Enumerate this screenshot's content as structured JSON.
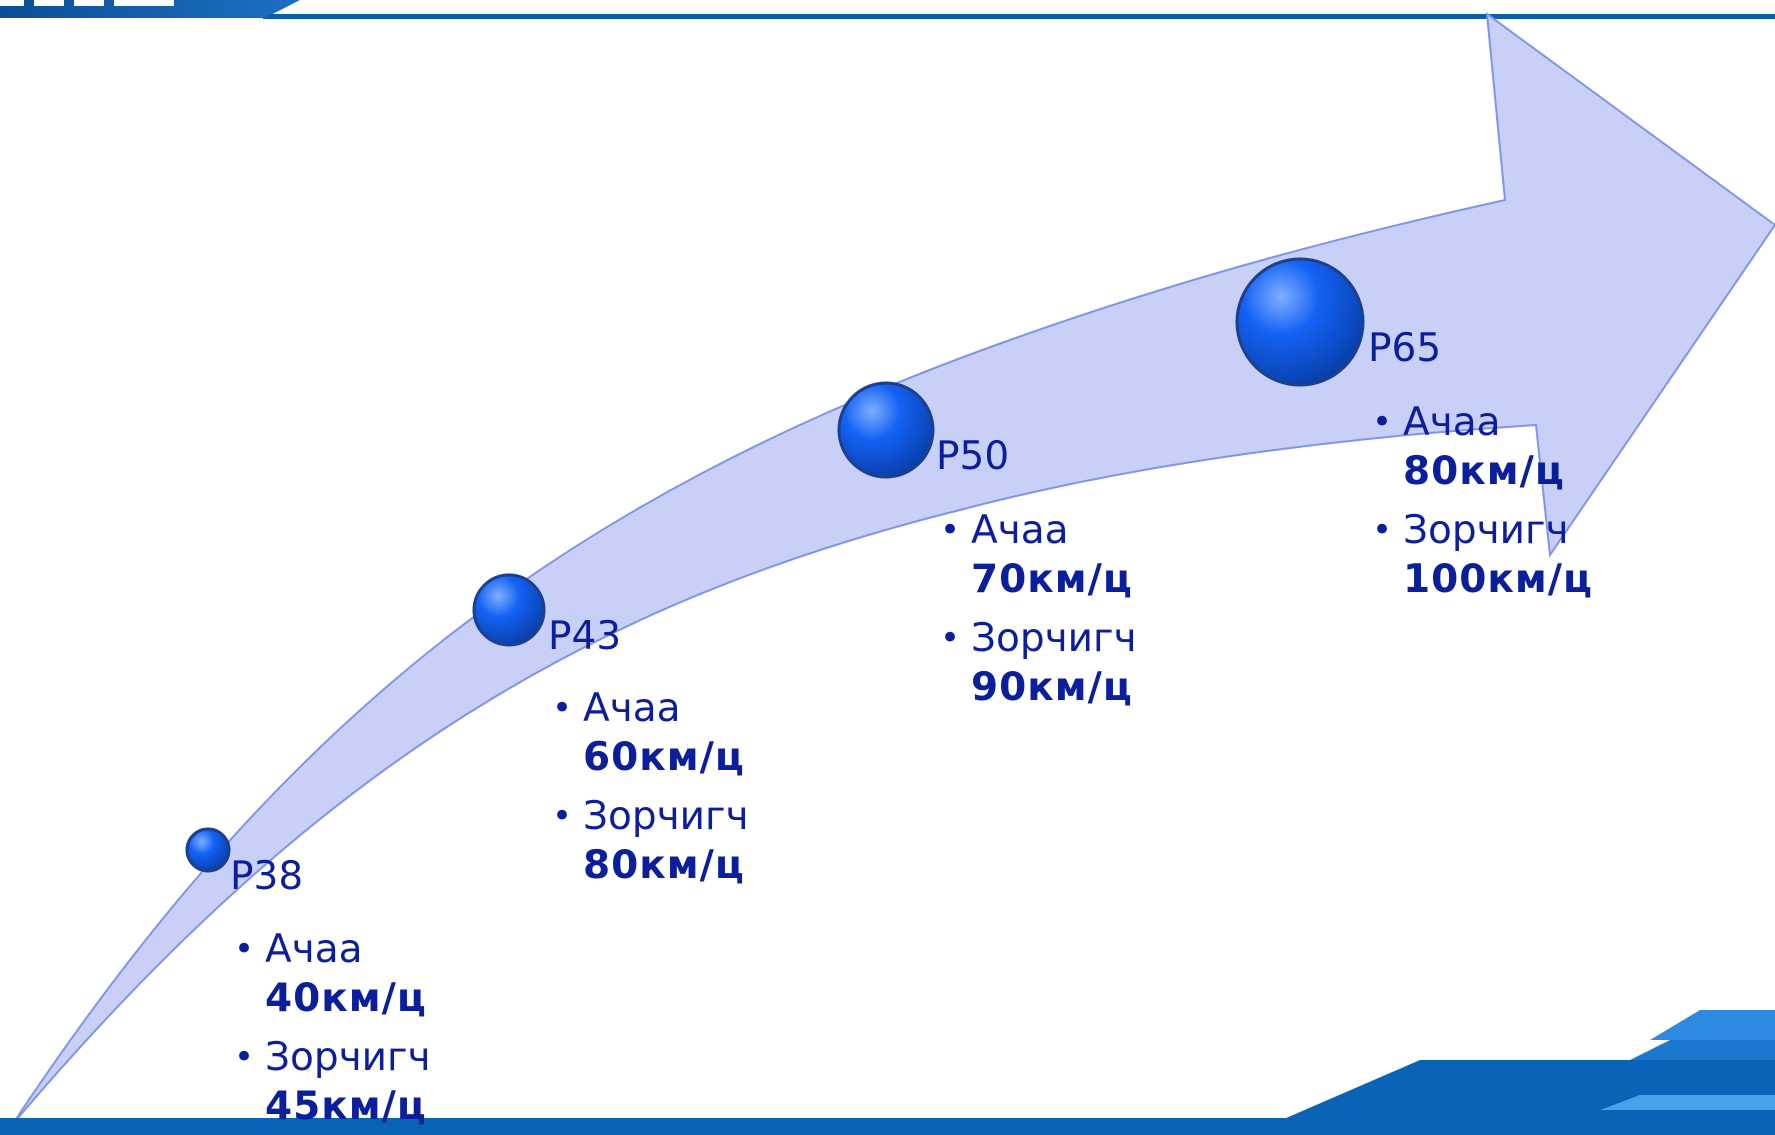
{
  "stages": [
    {
      "label": "P38",
      "items": [
        {
          "name": "Ачаа",
          "speed": "40км/ц"
        },
        {
          "name": "Зорчигч",
          "speed": "45км/ц"
        }
      ]
    },
    {
      "label": "P43",
      "items": [
        {
          "name": "Ачаа",
          "speed": "60км/ц"
        },
        {
          "name": "Зорчигч",
          "speed": "80км/ц"
        }
      ]
    },
    {
      "label": "P50",
      "items": [
        {
          "name": "Ачаа",
          "speed": "70км/ц"
        },
        {
          "name": "Зорчигч",
          "speed": "90км/ц"
        }
      ]
    },
    {
      "label": "P65",
      "items": [
        {
          "name": "Ачаа",
          "speed": "80км/ц"
        },
        {
          "name": "Зорчигч",
          "speed": "100км/ц"
        }
      ]
    }
  ],
  "colors": {
    "text": "#0b1f9c",
    "arrow_fill": "#c8d0f8",
    "arrow_stroke": "#7f95e6",
    "circle_fill": "#1462f4",
    "circle_ring": "#1d3f8f",
    "frame_blue": "#0b5fa8",
    "bottom_bar": "#0b63b8"
  },
  "icons": {
    "stage_marker": "blue-sphere-icon",
    "bullet": "bullet-dot-icon",
    "progress_arrow": "curved-arrow-icon"
  }
}
